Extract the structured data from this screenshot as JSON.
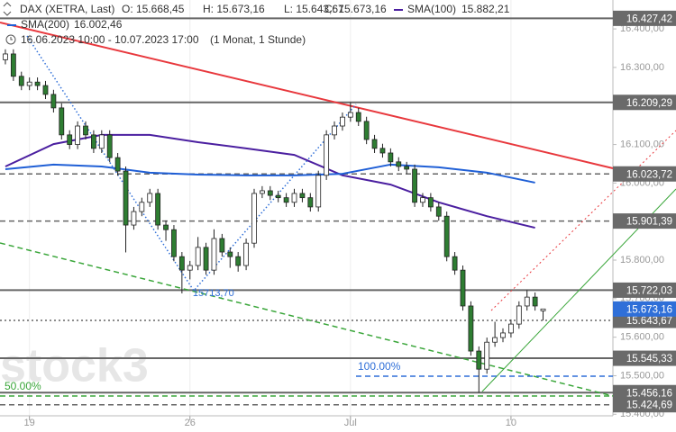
{
  "header": {
    "instrument": "DAX (XETRA, Last)",
    "open": "O: 15.668,45",
    "high": "H: 15.673,16",
    "low": "L: 15.643,67",
    "close": "C: 15.673,16",
    "sma100_name": "SMA(100)",
    "sma100_value": "15.882,21",
    "sma200_name": "SMA(200)",
    "sma200_value": "16.002,46",
    "range": "16.06.2023 10:00 - 10.07.2023 17:00",
    "period": "(1 Monat, 1 Stunde)"
  },
  "chart_data": {
    "type": "candlestick",
    "xlim": [
      -0.67,
      75.7
    ],
    "xticks": [
      {
        "value": 3,
        "label": "19"
      },
      {
        "value": 23,
        "label": "26"
      },
      {
        "value": 43,
        "label": "Jul"
      },
      {
        "value": 63,
        "label": "10"
      }
    ],
    "ylim": [
      15396,
      16475
    ],
    "yticks": [
      {
        "value": 15400,
        "label": "15.400,00"
      },
      {
        "value": 15500,
        "label": "15.500,00"
      },
      {
        "value": 15600,
        "label": "15.600,00"
      },
      {
        "value": 15700,
        "label": "15.700,00"
      },
      {
        "value": 15800,
        "label": "15.800,00"
      },
      {
        "value": 15900,
        "label": "15.900,00"
      },
      {
        "value": 16000,
        "label": "16.000,00"
      },
      {
        "value": 16100,
        "label": "16.100,00"
      },
      {
        "value": 16200,
        "label": "16.200,00"
      },
      {
        "value": 16300,
        "label": "16.300,00"
      },
      {
        "value": 16400,
        "label": "16.400,00"
      }
    ],
    "up_color": "#ffffff",
    "down_color": "#2e7d32",
    "open": [
      16320,
      16335,
      16277,
      16253,
      16262,
      16253,
      16230,
      16195,
      16125,
      16100,
      16148,
      16125,
      16090,
      16125,
      16066,
      16031,
      15891,
      15926,
      15950,
      15973,
      15891,
      15879,
      15809,
      15774,
      15786,
      15833,
      15774,
      15856,
      15821,
      15809,
      15786,
      15844,
      15973,
      15980,
      15968,
      15962,
      15950,
      15973,
      15962,
      15938,
      16020,
      16125,
      16148,
      16171,
      16183,
      16160,
      16113,
      16090,
      16078,
      16055,
      16043,
      16036,
      15950,
      15962,
      15938,
      15914,
      15809,
      15774,
      15681,
      15564,
      15517,
      15587,
      15599,
      15611,
      15634,
      15681,
      15704,
      15668.45
    ],
    "high": [
      16347,
      16347,
      16289,
      16274,
      16274,
      16265,
      16242,
      16207,
      16137,
      16160,
      16160,
      16137,
      16137,
      16137,
      16078,
      16043,
      15938,
      15962,
      15985,
      15985,
      15903,
      15891,
      15821,
      15798,
      15860,
      15845,
      15880,
      15868,
      15833,
      15821,
      15856,
      15985,
      15992,
      15992,
      15980,
      15974,
      15985,
      15985,
      15974,
      16032,
      16137,
      16160,
      16183,
      16209.29,
      16195,
      16172,
      16125,
      16102,
      16090,
      16067,
      16055,
      16048,
      15974,
      15974,
      15950,
      15926,
      15821,
      15786,
      15693,
      15576,
      15599,
      15640,
      15623,
      15646,
      15693,
      15722.03,
      15716,
      15673.16
    ],
    "low": [
      16308,
      16265,
      16241,
      16241,
      16241,
      16218,
      16183,
      16113,
      16088,
      16088,
      16113,
      16078,
      16078,
      16054,
      16019,
      15820,
      15879,
      15914,
      15938,
      15879,
      15850,
      15797,
      15713.7,
      15750,
      15774,
      15762,
      15762,
      15809,
      15780,
      15770,
      15774,
      15832,
      15961,
      15956,
      15950,
      15938,
      15938,
      15950,
      15926,
      15926,
      16008,
      16113,
      16136,
      16159,
      16148,
      16101,
      16078,
      16066,
      16043,
      16031,
      16024,
      15938,
      15938,
      15926,
      15902,
      15797,
      15762,
      15669,
      15552,
      15456.16,
      15505,
      15575,
      15587,
      15599,
      15622,
      15669,
      15669,
      15643.67
    ],
    "close": [
      16335,
      16277,
      16253,
      16262,
      16253,
      16230,
      16195,
      16125,
      16100,
      16148,
      16125,
      16090,
      16125,
      16066,
      16031,
      15891,
      15926,
      15950,
      15973,
      15891,
      15879,
      15809,
      15774,
      15786,
      15833,
      15774,
      15856,
      15821,
      15809,
      15786,
      15844,
      15973,
      15980,
      15968,
      15962,
      15950,
      15973,
      15962,
      15938,
      16020,
      16125,
      16148,
      16171,
      16183,
      16160,
      16113,
      16090,
      16078,
      16055,
      16043,
      16036,
      15950,
      15962,
      15938,
      15914,
      15809,
      15774,
      15681,
      15564,
      15517,
      15587,
      15599,
      15611,
      15634,
      15681,
      15704,
      15681,
      15673.16
    ],
    "series": [
      {
        "name": "SMA(100)",
        "color": "#4b1fa0",
        "x": [
          0,
          6,
          12,
          18,
          24,
          30,
          36,
          42,
          48,
          54,
          60,
          66
        ],
        "values": [
          16043,
          16101,
          16125,
          16125,
          16106,
          16090,
          16073,
          16020,
          15996,
          15950,
          15914,
          15884
        ]
      },
      {
        "name": "SMA(200)",
        "color": "#1f5fd6",
        "x": [
          0,
          6,
          12,
          18,
          24,
          30,
          36,
          42,
          48,
          54,
          60,
          66
        ],
        "values": [
          16036,
          16048,
          16043,
          16027,
          16022,
          16020,
          16020,
          16024,
          16048,
          16041,
          16027,
          16001
        ]
      }
    ],
    "levels": [
      {
        "value": 16427.42,
        "label": "16.427,42",
        "style": "solid"
      },
      {
        "value": 16209.29,
        "label": "16.209,29",
        "style": "solid"
      },
      {
        "value": 16023.72,
        "label": "16.023,72",
        "style": "dashed"
      },
      {
        "value": 15901.39,
        "label": "15.901,39",
        "style": "dashed"
      },
      {
        "value": 15722.03,
        "label": "15.722,03",
        "style": "solid"
      },
      {
        "value": 15643.67,
        "label": "15.643,67",
        "style": "dotted"
      },
      {
        "value": 15545.33,
        "label": "15.545,33",
        "style": "solid"
      },
      {
        "value": 15456.16,
        "label": "15.456,16",
        "style": "solid"
      },
      {
        "value": 15424.69,
        "label": "15.424,69",
        "style": "dashed"
      }
    ],
    "last_price": {
      "value": 15673.16,
      "label": "15.673,16",
      "color": "#2f6fd8"
    },
    "low_annotation": "15713,70",
    "fib_100": "100.00%",
    "fib_50": "50.00%",
    "watermark": "stock3"
  }
}
